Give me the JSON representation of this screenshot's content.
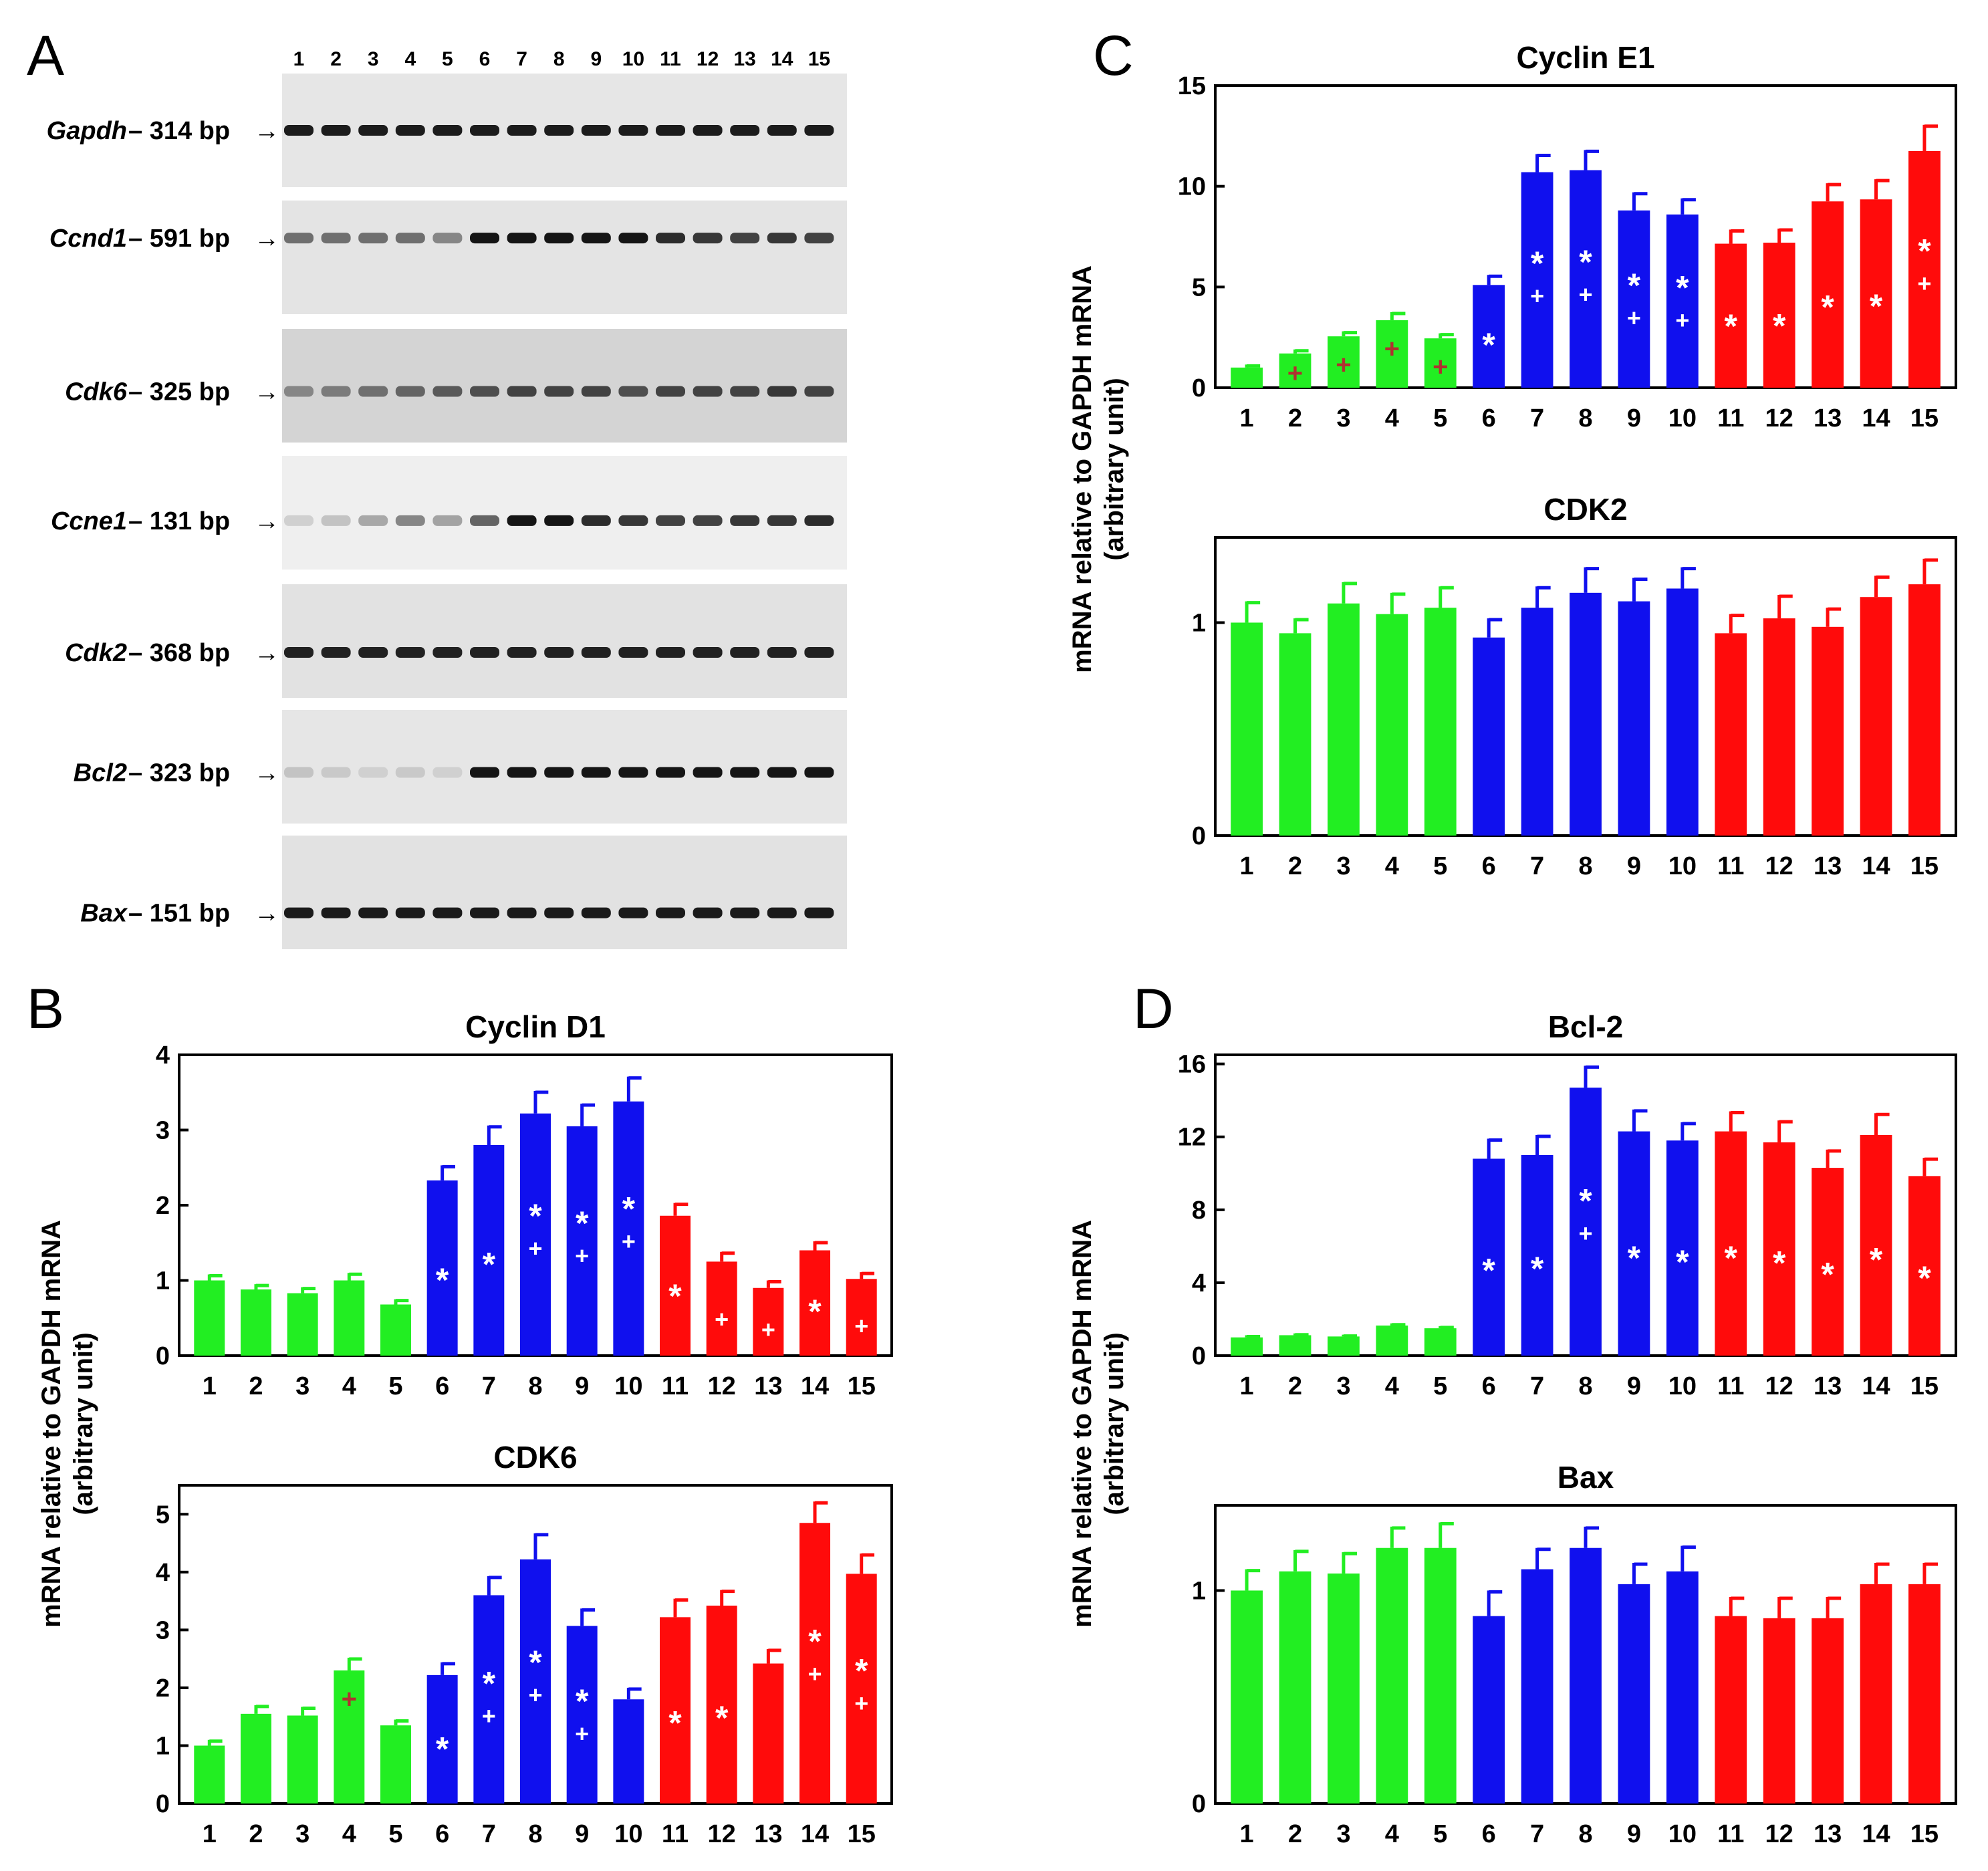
{
  "panel_labels": {
    "a": "A",
    "b": "B",
    "c": "C",
    "d": "D"
  },
  "y_axis_label": {
    "line1": "mRNA relative to GAPDH mRNA",
    "line2": "(arbitrary unit)"
  },
  "lanes": [
    "1",
    "2",
    "3",
    "4",
    "5",
    "6",
    "7",
    "8",
    "9",
    "10",
    "11",
    "12",
    "13",
    "14",
    "15"
  ],
  "group_colors": {
    "green": "#22ee22",
    "blue": "#1010ee",
    "red": "#ff0b0b"
  },
  "mark_colors": {
    "white": "#ffffff",
    "dark_red": "#b03030"
  },
  "gel_rows": [
    {
      "gene": "Gapdh",
      "size": "– 314 bp",
      "arrow": "→"
    },
    {
      "gene": "Ccnd1",
      "size": "– 591 bp",
      "arrow": "→"
    },
    {
      "gene": "Cdk6",
      "size": "– 325 bp",
      "arrow": "→"
    },
    {
      "gene": "Ccne1",
      "size": "– 131 bp",
      "arrow": "→"
    },
    {
      "gene": "Cdk2",
      "size": "– 368 bp",
      "arrow": "→"
    },
    {
      "gene": "Bcl2",
      "size": "– 323 bp",
      "arrow": "→"
    },
    {
      "gene": "Bax",
      "size": "– 151 bp",
      "arrow": "→"
    }
  ],
  "chart_data": [
    {
      "id": "cyclin-d1",
      "type": "bar",
      "title": "Cyclin D1",
      "categories": [
        "1",
        "2",
        "3",
        "4",
        "5",
        "6",
        "7",
        "8",
        "9",
        "10",
        "11",
        "12",
        "13",
        "14",
        "15"
      ],
      "values": [
        1.0,
        0.88,
        0.83,
        1.0,
        0.68,
        2.33,
        2.8,
        3.22,
        3.05,
        3.38,
        1.86,
        1.25,
        0.9,
        1.4,
        1.02
      ],
      "errors": [
        0.08,
        0.07,
        0.08,
        0.1,
        0.07,
        0.2,
        0.26,
        0.3,
        0.3,
        0.33,
        0.17,
        0.13,
        0.1,
        0.12,
        0.09
      ],
      "star": [
        false,
        false,
        false,
        false,
        false,
        true,
        true,
        true,
        true,
        true,
        true,
        false,
        false,
        true,
        false
      ],
      "plus": [
        false,
        false,
        false,
        false,
        false,
        false,
        false,
        true,
        true,
        true,
        false,
        true,
        true,
        false,
        true
      ],
      "plus_dark": [
        false,
        false,
        false,
        false,
        false,
        false,
        false,
        false,
        false,
        false,
        false,
        false,
        false,
        false,
        false
      ],
      "ylim": [
        0,
        4
      ],
      "yticks": [
        0,
        1,
        2,
        3,
        4
      ],
      "ytick_labels": [
        "0",
        "1",
        "2",
        "3",
        "4"
      ]
    },
    {
      "id": "cdk6",
      "type": "bar",
      "title": "CDK6",
      "categories": [
        "1",
        "2",
        "3",
        "4",
        "5",
        "6",
        "7",
        "8",
        "9",
        "10",
        "11",
        "12",
        "13",
        "14",
        "15"
      ],
      "values": [
        1.0,
        1.55,
        1.52,
        2.3,
        1.35,
        2.22,
        3.6,
        4.22,
        3.07,
        1.8,
        3.22,
        3.42,
        2.42,
        4.85,
        3.97
      ],
      "errors": [
        0.1,
        0.15,
        0.15,
        0.22,
        0.1,
        0.22,
        0.33,
        0.45,
        0.3,
        0.2,
        0.32,
        0.27,
        0.25,
        0.37,
        0.35
      ],
      "star": [
        false,
        false,
        false,
        false,
        false,
        true,
        true,
        true,
        true,
        false,
        true,
        true,
        false,
        true,
        true
      ],
      "plus": [
        false,
        false,
        false,
        true,
        false,
        false,
        true,
        true,
        true,
        false,
        false,
        false,
        false,
        true,
        true
      ],
      "plus_dark": [
        false,
        false,
        false,
        true,
        false,
        false,
        false,
        false,
        false,
        false,
        false,
        false,
        false,
        false,
        false
      ],
      "ylim": [
        0,
        5.5
      ],
      "yticks": [
        0,
        1,
        2,
        3,
        4,
        5
      ],
      "ytick_labels": [
        "0",
        "1",
        "2",
        "3",
        "4",
        "5"
      ]
    },
    {
      "id": "cyclin-e1",
      "type": "bar",
      "title": "Cyclin E1",
      "categories": [
        "1",
        "2",
        "3",
        "4",
        "5",
        "6",
        "7",
        "8",
        "9",
        "10",
        "11",
        "12",
        "13",
        "14",
        "15"
      ],
      "values": [
        1.0,
        1.7,
        2.55,
        3.35,
        2.45,
        5.1,
        10.7,
        10.8,
        8.8,
        8.6,
        7.15,
        7.2,
        9.25,
        9.35,
        11.75
      ],
      "errors": [
        0.15,
        0.2,
        0.25,
        0.4,
        0.25,
        0.5,
        0.9,
        1.0,
        0.9,
        0.8,
        0.7,
        0.7,
        0.9,
        1.0,
        1.3
      ],
      "star": [
        false,
        false,
        false,
        false,
        false,
        true,
        true,
        true,
        true,
        true,
        true,
        true,
        true,
        true,
        true
      ],
      "plus": [
        false,
        true,
        true,
        true,
        true,
        false,
        true,
        true,
        true,
        true,
        false,
        false,
        false,
        false,
        true
      ],
      "plus_dark": [
        false,
        true,
        true,
        true,
        true,
        false,
        false,
        false,
        false,
        false,
        false,
        false,
        false,
        false,
        false
      ],
      "ylim": [
        0,
        15
      ],
      "yticks": [
        0,
        5,
        10,
        15
      ],
      "ytick_labels": [
        "0",
        "5",
        "10",
        "15"
      ]
    },
    {
      "id": "cdk2",
      "type": "bar",
      "title": "CDK2",
      "categories": [
        "1",
        "2",
        "3",
        "4",
        "5",
        "6",
        "7",
        "8",
        "9",
        "10",
        "11",
        "12",
        "13",
        "14",
        "15"
      ],
      "values": [
        1.0,
        0.95,
        1.09,
        1.04,
        1.07,
        0.93,
        1.07,
        1.14,
        1.1,
        1.16,
        0.95,
        1.02,
        0.98,
        1.12,
        1.18
      ],
      "errors": [
        0.1,
        0.07,
        0.1,
        0.1,
        0.1,
        0.09,
        0.1,
        0.12,
        0.11,
        0.1,
        0.09,
        0.11,
        0.09,
        0.1,
        0.12
      ],
      "star": [
        false,
        false,
        false,
        false,
        false,
        false,
        false,
        false,
        false,
        false,
        false,
        false,
        false,
        false,
        false
      ],
      "plus": [
        false,
        false,
        false,
        false,
        false,
        false,
        false,
        false,
        false,
        false,
        false,
        false,
        false,
        false,
        false
      ],
      "plus_dark": [
        false,
        false,
        false,
        false,
        false,
        false,
        false,
        false,
        false,
        false,
        false,
        false,
        false,
        false,
        false
      ],
      "ylim": [
        0,
        1.4
      ],
      "yticks": [
        0,
        1
      ],
      "ytick_labels": [
        "0",
        "1"
      ]
    },
    {
      "id": "bcl-2",
      "type": "bar",
      "title": "Bcl-2",
      "categories": [
        "1",
        "2",
        "3",
        "4",
        "5",
        "6",
        "7",
        "8",
        "9",
        "10",
        "11",
        "12",
        "13",
        "14",
        "15"
      ],
      "values": [
        1.0,
        1.12,
        1.05,
        1.65,
        1.5,
        10.8,
        11.0,
        14.7,
        12.3,
        11.8,
        12.3,
        11.7,
        10.3,
        12.1,
        9.85
      ],
      "errors": [
        0.12,
        0.1,
        0.1,
        0.12,
        0.12,
        1.1,
        1.1,
        1.2,
        1.2,
        1.0,
        1.1,
        1.2,
        1.0,
        1.2,
        1.0
      ],
      "star": [
        false,
        false,
        false,
        false,
        false,
        true,
        true,
        true,
        true,
        true,
        true,
        true,
        true,
        true,
        true
      ],
      "plus": [
        false,
        false,
        false,
        false,
        false,
        false,
        false,
        true,
        false,
        false,
        false,
        false,
        false,
        false,
        false
      ],
      "plus_dark": [
        false,
        false,
        false,
        false,
        false,
        false,
        false,
        false,
        false,
        false,
        false,
        false,
        false,
        false,
        false
      ],
      "ylim": [
        0,
        16.5
      ],
      "yticks": [
        0,
        4,
        8,
        12,
        16
      ],
      "ytick_labels": [
        "0",
        "4",
        "8",
        "12",
        "16"
      ]
    },
    {
      "id": "bax",
      "type": "bar",
      "title": "Bax",
      "categories": [
        "1",
        "2",
        "3",
        "4",
        "5",
        "6",
        "7",
        "8",
        "9",
        "10",
        "11",
        "12",
        "13",
        "14",
        "15"
      ],
      "values": [
        1.0,
        1.09,
        1.08,
        1.2,
        1.2,
        0.88,
        1.1,
        1.2,
        1.03,
        1.09,
        0.88,
        0.87,
        0.87,
        1.03,
        1.03
      ],
      "errors": [
        0.1,
        0.1,
        0.1,
        0.1,
        0.12,
        0.12,
        0.1,
        0.1,
        0.1,
        0.12,
        0.09,
        0.1,
        0.1,
        0.1,
        0.1
      ],
      "star": [
        false,
        false,
        false,
        false,
        false,
        false,
        false,
        false,
        false,
        false,
        false,
        false,
        false,
        false,
        false
      ],
      "plus": [
        false,
        false,
        false,
        false,
        false,
        false,
        false,
        false,
        false,
        false,
        false,
        false,
        false,
        false,
        false
      ],
      "plus_dark": [
        false,
        false,
        false,
        false,
        false,
        false,
        false,
        false,
        false,
        false,
        false,
        false,
        false,
        false,
        false
      ],
      "ylim": [
        0,
        1.4
      ],
      "yticks": [
        0,
        1
      ],
      "ytick_labels": [
        "0",
        "1"
      ]
    }
  ]
}
